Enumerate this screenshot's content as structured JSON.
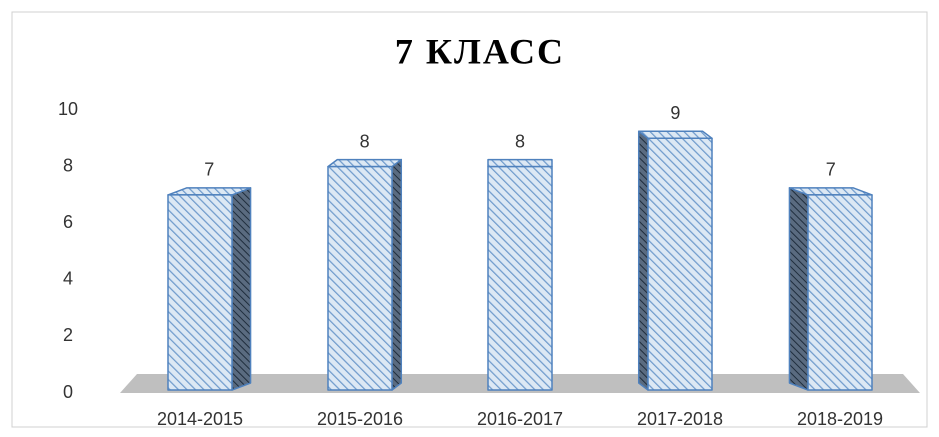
{
  "chart_data": {
    "type": "bar3d",
    "title": "7 КЛАСС",
    "categories": [
      "2014-2015",
      "2015-2016",
      "2016-2017",
      "2017-2018",
      "2018-2019"
    ],
    "values": [
      7,
      8,
      8,
      9,
      7
    ],
    "color": "#4f81bd",
    "ylim": [
      0,
      10
    ],
    "yticks": [
      0,
      2,
      4,
      6,
      8,
      10
    ],
    "grid": false
  }
}
